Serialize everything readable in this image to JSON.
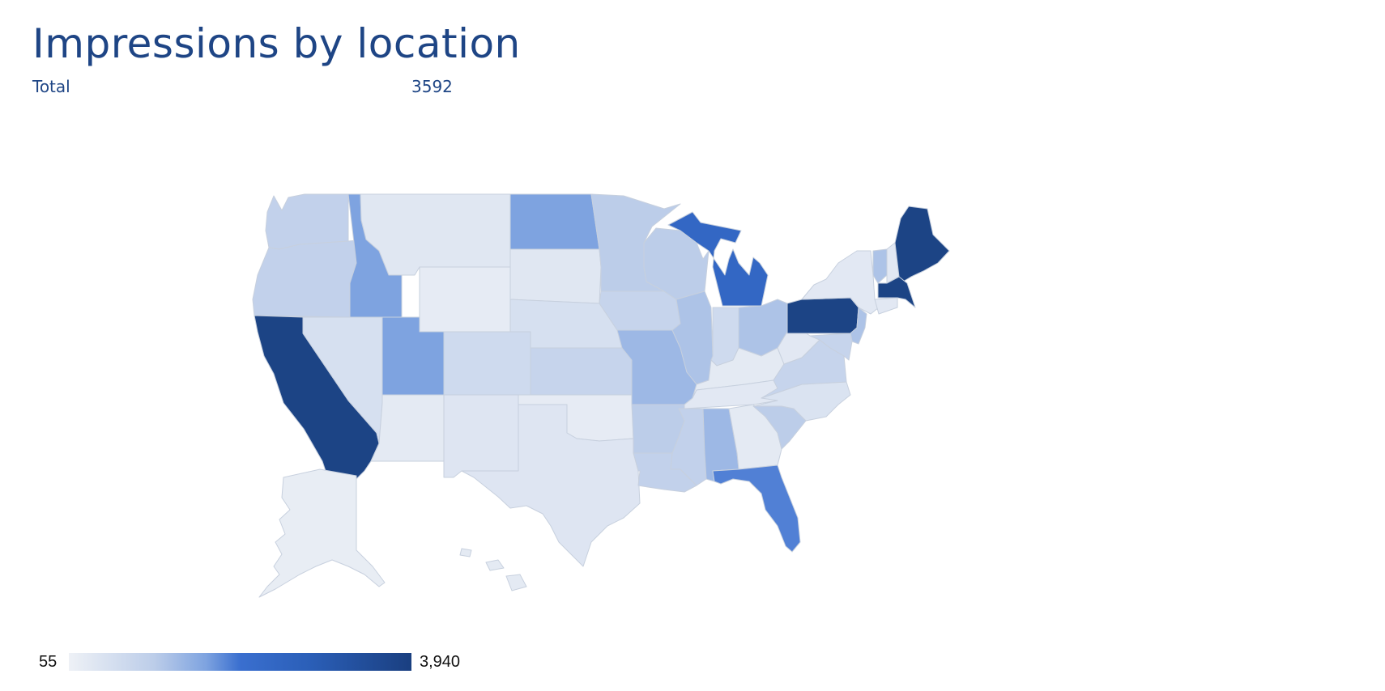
{
  "header": {
    "title": "Impressions by location",
    "total_label": "Total",
    "total_value": "3592"
  },
  "legend": {
    "min_label": "55",
    "max_label": "3,940"
  },
  "map": {
    "type": "choropleth",
    "region": "United States",
    "metric": "Impressions",
    "scale_min": 55,
    "scale_max": 3940,
    "states": [
      {
        "id": "WA",
        "level": 0.22
      },
      {
        "id": "OR",
        "level": 0.22
      },
      {
        "id": "CA",
        "level": 1.0
      },
      {
        "id": "ID",
        "level": 0.45
      },
      {
        "id": "NV",
        "level": 0.12
      },
      {
        "id": "MT",
        "level": 0.07
      },
      {
        "id": "WY",
        "level": 0.04
      },
      {
        "id": "UT",
        "level": 0.45
      },
      {
        "id": "AZ",
        "level": 0.05
      },
      {
        "id": "CO",
        "level": 0.16
      },
      {
        "id": "NM",
        "level": 0.08
      },
      {
        "id": "ND",
        "level": 0.45
      },
      {
        "id": "SD",
        "level": 0.07
      },
      {
        "id": "NE",
        "level": 0.12
      },
      {
        "id": "KS",
        "level": 0.2
      },
      {
        "id": "OK",
        "level": 0.04
      },
      {
        "id": "TX",
        "level": 0.08
      },
      {
        "id": "MN",
        "level": 0.25
      },
      {
        "id": "IA",
        "level": 0.2
      },
      {
        "id": "MO",
        "level": 0.35
      },
      {
        "id": "AR",
        "level": 0.25
      },
      {
        "id": "LA",
        "level": 0.22
      },
      {
        "id": "WI",
        "level": 0.25
      },
      {
        "id": "IL",
        "level": 0.3
      },
      {
        "id": "MI",
        "level": 0.7
      },
      {
        "id": "IN",
        "level": 0.16
      },
      {
        "id": "OH",
        "level": 0.3
      },
      {
        "id": "KY",
        "level": 0.05
      },
      {
        "id": "TN",
        "level": 0.06
      },
      {
        "id": "MS",
        "level": 0.22
      },
      {
        "id": "AL",
        "level": 0.35
      },
      {
        "id": "GA",
        "level": 0.05
      },
      {
        "id": "FL",
        "level": 0.55
      },
      {
        "id": "SC",
        "level": 0.25
      },
      {
        "id": "NC",
        "level": 0.1
      },
      {
        "id": "VA",
        "level": 0.2
      },
      {
        "id": "WV",
        "level": 0.06
      },
      {
        "id": "PA",
        "level": 1.0
      },
      {
        "id": "NY",
        "level": 0.06
      },
      {
        "id": "VT",
        "level": 0.3
      },
      {
        "id": "NH",
        "level": 0.06
      },
      {
        "id": "ME",
        "level": 1.0
      },
      {
        "id": "MA",
        "level": 1.0
      },
      {
        "id": "CT",
        "level": 0.06
      },
      {
        "id": "NJ",
        "level": 0.3
      },
      {
        "id": "MD",
        "level": 0.2
      },
      {
        "id": "AK",
        "level": 0.03
      },
      {
        "id": "HI",
        "level": 0.05
      }
    ]
  }
}
